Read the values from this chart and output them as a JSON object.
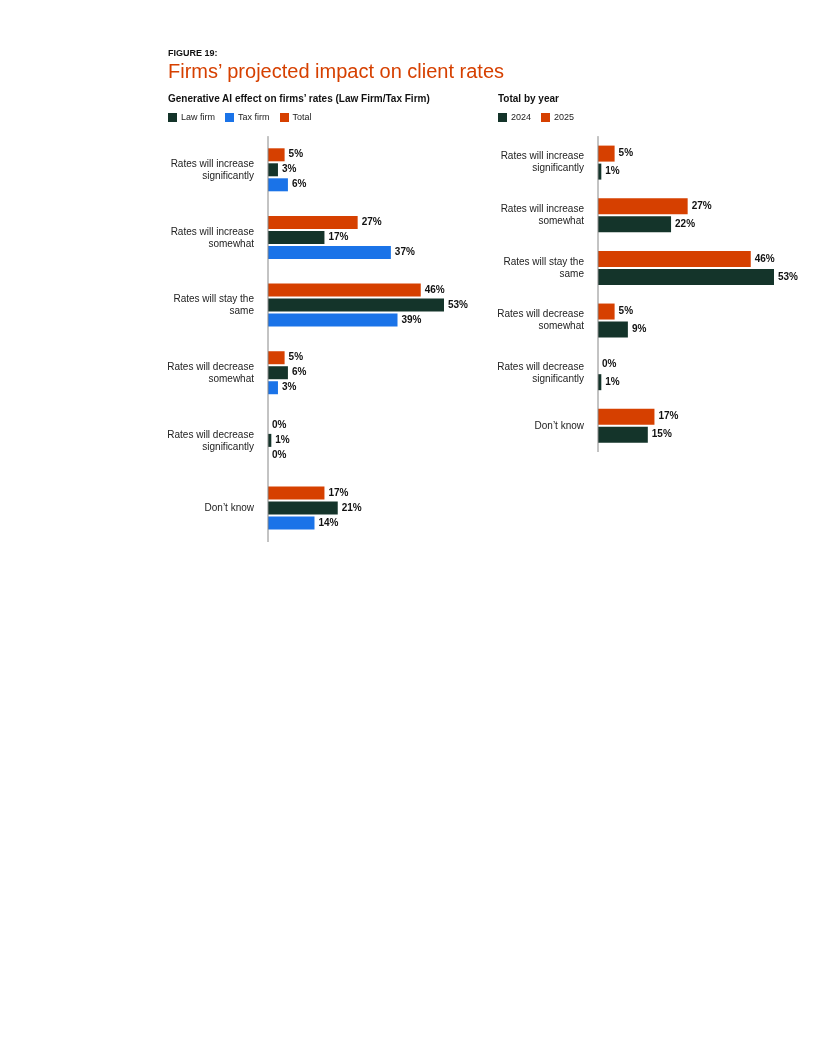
{
  "chart_data": [
    {
      "type": "bar",
      "orientation": "horizontal",
      "title": "Generative AI effect on firms’ rates (Law Firm/Tax Firm)",
      "annotations": [
        "FIGURE 19:",
        "Firms’ projected impact on client rates"
      ],
      "legend": "top left",
      "categories": [
        "Rates will increase significantly",
        "Rates will increase somewhat",
        "Rates will stay the same",
        "Rates will decrease somewhat",
        "Rates will decrease significantly",
        "Don’t know"
      ],
      "series": [
        {
          "name": "Total",
          "color": "#d64000",
          "values": [
            5,
            27,
            46,
            5,
            0,
            17
          ],
          "value_labels": [
            "5%",
            "27%",
            "46%",
            "5%",
            "0%",
            "17%"
          ]
        },
        {
          "name": "Law firm",
          "color": "#14342a",
          "values": [
            3,
            17,
            53,
            6,
            1,
            21
          ],
          "value_labels": [
            "3%",
            "17%",
            "53%",
            "6%",
            "1%",
            "21%"
          ]
        },
        {
          "name": "Tax firm",
          "color": "#1a73e8",
          "values": [
            6,
            37,
            39,
            3,
            0,
            14
          ],
          "value_labels": [
            "6%",
            "37%",
            "39%",
            "3%",
            "0%",
            "14%"
          ]
        }
      ]
    },
    {
      "type": "bar",
      "orientation": "horizontal",
      "title": "Total by year",
      "legend": "top left",
      "categories": [
        "Rates will increase significantly",
        "Rates will increase somewhat",
        "Rates will stay the same",
        "Rates will decrease somewhat",
        "Rates will decrease significantly",
        "Don’t know"
      ],
      "series": [
        {
          "name": "2025",
          "color": "#d64000",
          "values": [
            5,
            27,
            46,
            5,
            0,
            17
          ],
          "value_labels": [
            "5%",
            "27%",
            "46%",
            "5%",
            "0%",
            "17%"
          ]
        },
        {
          "name": "2024",
          "color": "#14342a",
          "values": [
            1,
            22,
            53,
            9,
            1,
            15
          ],
          "value_labels": [
            "1%",
            "22%",
            "53%",
            "9%",
            "1%",
            "15%"
          ]
        }
      ]
    }
  ]
}
